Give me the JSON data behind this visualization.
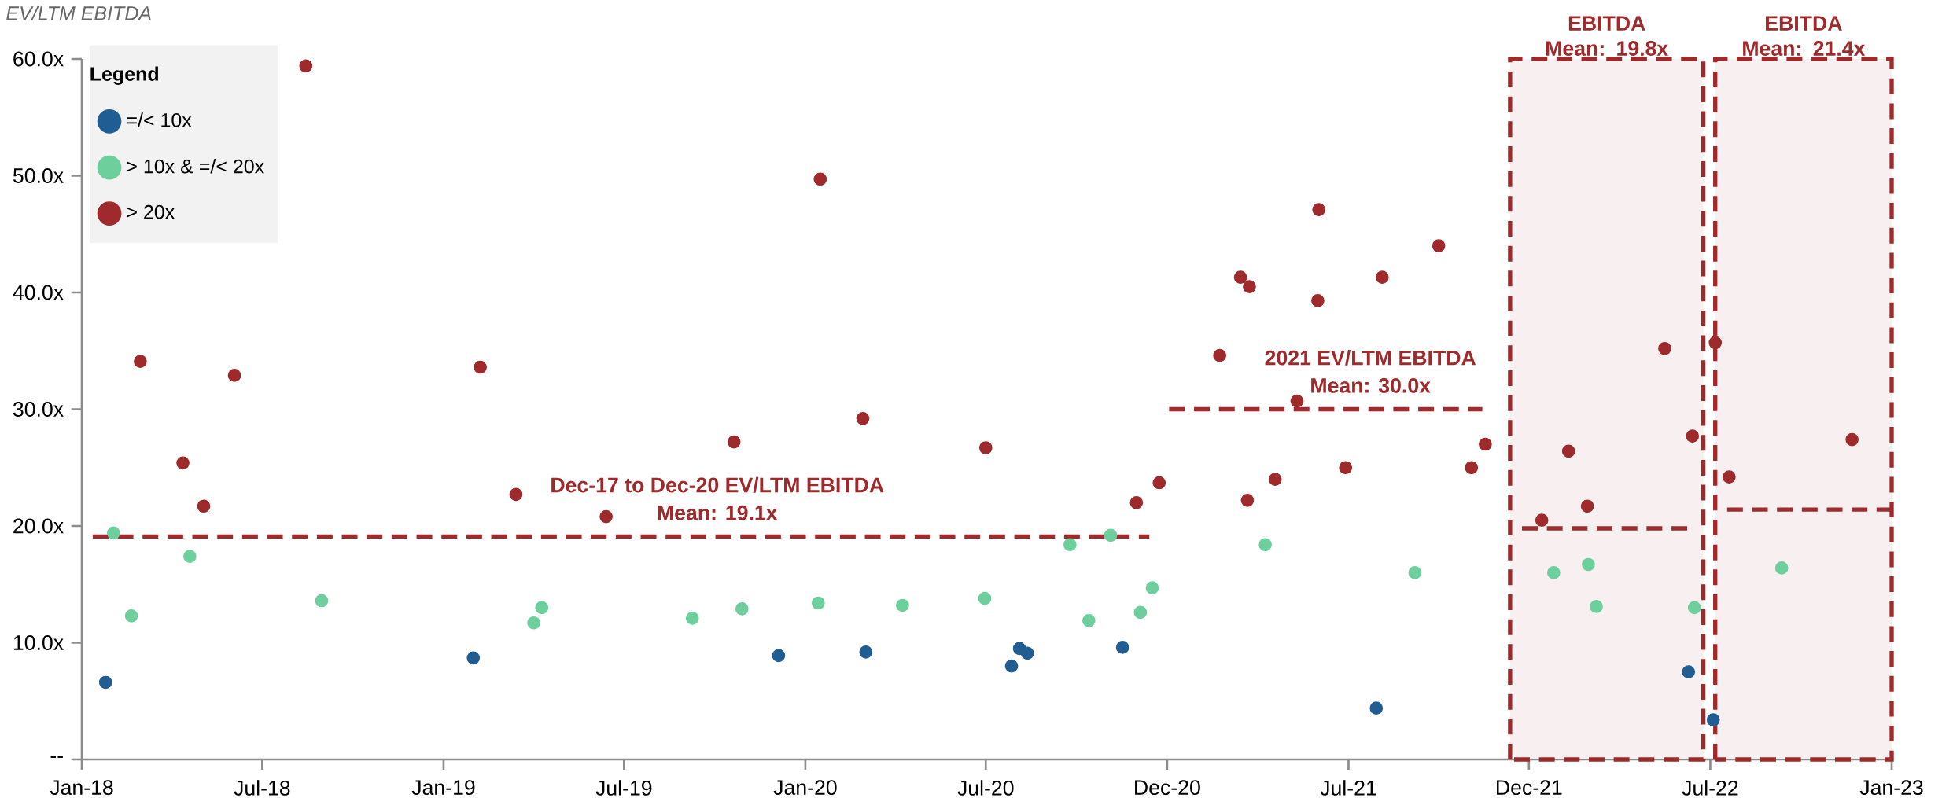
{
  "chart_data": {
    "type": "scatter",
    "ylabel": "EV/LTM EBITDA",
    "legend_title": "Legend",
    "legend": "top left",
    "xlim": [
      "2018-01-01",
      "2023-01-01"
    ],
    "xticks": [
      {
        "value": "2018-01-01",
        "label": "Jan-18"
      },
      {
        "value": "2018-07-02",
        "label": "Jul-18"
      },
      {
        "value": "2019-01-01",
        "label": "Jan-19"
      },
      {
        "value": "2019-07-02",
        "label": "Jul-19"
      },
      {
        "value": "2020-01-01",
        "label": "Jan-20"
      },
      {
        "value": "2020-07-01",
        "label": "Jul-20"
      },
      {
        "value": "2020-12-31",
        "label": "Dec-20"
      },
      {
        "value": "2021-07-02",
        "label": "Jul-21"
      },
      {
        "value": "2021-12-31",
        "label": "Dec-21"
      },
      {
        "value": "2022-07-02",
        "label": "Jul-22"
      },
      {
        "value": "2023-01-01",
        "label": "Jan-23"
      }
    ],
    "ylim": [
      0,
      60
    ],
    "yticks": [
      {
        "value": 0,
        "label": "--"
      },
      {
        "value": 10,
        "label": "10.0x"
      },
      {
        "value": 20,
        "label": "20.0x"
      },
      {
        "value": 30,
        "label": "30.0x"
      },
      {
        "value": 40,
        "label": "40.0x"
      },
      {
        "value": 50,
        "label": "50.0x"
      },
      {
        "value": 60,
        "label": "60.0x"
      }
    ],
    "series": [
      {
        "name": "=/< 10x",
        "color": "#1f5d93",
        "marker": "circle",
        "x": [
          "2018-01-25",
          "2019-01-31",
          "2019-12-05",
          "2020-03-02",
          "2020-07-27",
          "2020-08-04",
          "2020-08-12",
          "2020-11-16",
          "2021-07-30",
          "2022-06-10",
          "2022-07-05"
        ],
        "values": [
          6.6,
          8.7,
          8.9,
          9.2,
          8.0,
          9.5,
          9.1,
          9.6,
          4.4,
          7.5,
          3.4
        ]
      },
      {
        "name": "> 10x & =/< 20x",
        "color": "#6dcf9b",
        "marker": "circle",
        "x": [
          "2018-02-02",
          "2018-02-20",
          "2018-04-20",
          "2018-08-31",
          "2019-04-02",
          "2019-04-10",
          "2019-09-09",
          "2019-10-29",
          "2020-01-14",
          "2020-04-08",
          "2020-06-30",
          "2020-09-24",
          "2020-10-13",
          "2020-11-04",
          "2020-12-04",
          "2020-12-16",
          "2021-04-09",
          "2021-09-07",
          "2022-01-25",
          "2022-03-01",
          "2022-03-09",
          "2022-06-16",
          "2022-09-12"
        ],
        "values": [
          19.4,
          12.3,
          17.4,
          13.6,
          11.7,
          13.0,
          12.1,
          12.9,
          13.4,
          13.2,
          13.8,
          18.4,
          11.9,
          19.2,
          12.6,
          14.7,
          18.4,
          16.0,
          16.0,
          16.7,
          13.1,
          13.0,
          16.4
        ]
      },
      {
        "name": "> 20x",
        "color": "#9e2a2b",
        "marker": "circle",
        "x": [
          "2018-03-01",
          "2018-04-13",
          "2018-05-04",
          "2018-06-04",
          "2018-08-15",
          "2019-02-07",
          "2019-03-15",
          "2019-06-14",
          "2019-10-21",
          "2020-01-16",
          "2020-02-28",
          "2020-07-01",
          "2020-11-30",
          "2020-12-23",
          "2021-02-22",
          "2021-03-15",
          "2021-03-22",
          "2021-03-24",
          "2021-04-19",
          "2021-05-11",
          "2021-06-01",
          "2021-06-02",
          "2021-06-29",
          "2021-08-05",
          "2021-10-01",
          "2021-11-03",
          "2021-11-17",
          "2022-01-13",
          "2022-02-09",
          "2022-02-28",
          "2022-05-17",
          "2022-06-14",
          "2022-07-07",
          "2022-07-21",
          "2022-11-22"
        ],
        "values": [
          34.1,
          25.4,
          21.7,
          32.9,
          59.4,
          33.6,
          22.7,
          20.8,
          27.2,
          49.7,
          29.2,
          26.7,
          22.0,
          23.7,
          34.6,
          41.3,
          22.2,
          40.5,
          24.0,
          30.7,
          39.3,
          47.1,
          25.0,
          41.3,
          44.0,
          25.0,
          27.0,
          20.5,
          26.4,
          21.7,
          35.2,
          27.7,
          35.7,
          24.2,
          27.4
        ]
      },
      {
        "color": "#a02b2f",
        "type": "line",
        "line_style": "dashed",
        "marker": "none",
        "x": [
          "2018-01-12",
          "2020-12-13"
        ],
        "values": [
          19.1,
          19.1
        ]
      },
      {
        "color": "#a02b2f",
        "type": "line",
        "line_style": "dashed",
        "marker": "none",
        "x": [
          "2021-01-02",
          "2021-11-14"
        ],
        "values": [
          30.0,
          30.0
        ]
      },
      {
        "color": "#a02b2f",
        "type": "line",
        "line_style": "dashed",
        "marker": "none",
        "x": [
          "2021-12-24",
          "2022-06-12"
        ],
        "values": [
          19.8,
          19.8
        ]
      },
      {
        "color": "#a02b2f",
        "type": "line",
        "line_style": "dashed",
        "marker": "none",
        "x": [
          "2022-07-19",
          "2022-12-31"
        ],
        "values": [
          21.4,
          21.4
        ]
      }
    ],
    "bands": [
      {
        "axis": "x",
        "from": "2021-12-12",
        "to": "2022-06-25",
        "label": "EBITDA Mean: 19.8x",
        "color": "#f8f0f0"
      },
      {
        "axis": "x",
        "from": "2022-07-07",
        "to": "2023-01-01",
        "label": "EBITDA Mean: 21.4x",
        "color": "#f8f0f0"
      }
    ],
    "annotations": [
      {
        "text": "Dec-17 to Dec-20 EV/LTM EBITDA",
        "x": "2019-10-04",
        "y": 19.1
      },
      {
        "text": "Mean: 19.1x",
        "x": "2019-10-04",
        "y": 19.1
      },
      {
        "text": "2021 EV/LTM EBITDA",
        "x": "2021-07-24",
        "y": 30.0
      },
      {
        "text": "Mean: 30.0x",
        "x": "2021-07-24",
        "y": 30.0
      }
    ]
  }
}
